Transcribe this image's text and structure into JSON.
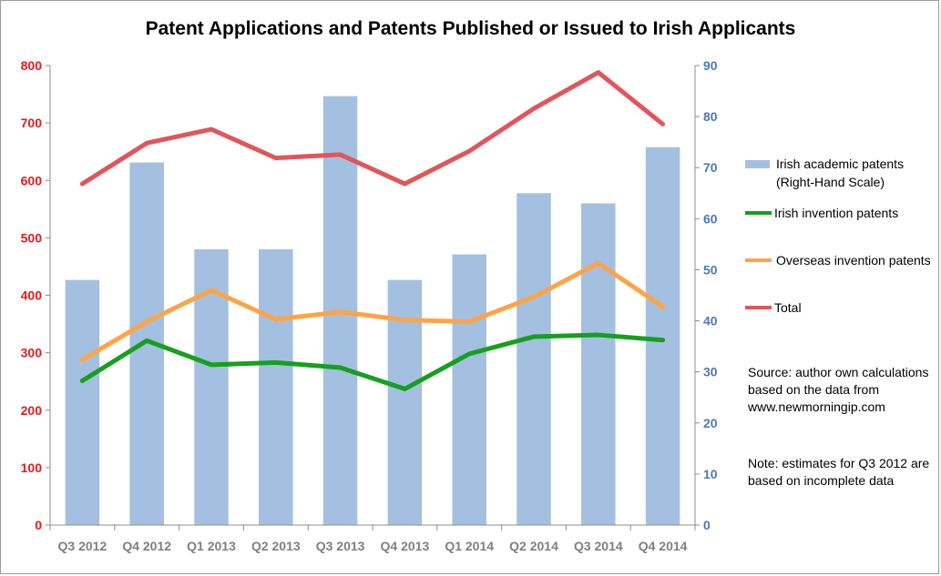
{
  "chart_data": {
    "type": "bar+line",
    "title": "Patent Applications and Patents Published or Issued to Irish Applicants",
    "categories": [
      "Q3 2012",
      "Q4 2012",
      "Q1 2013",
      "Q2 2013",
      "Q3 2013",
      "Q4 2013",
      "Q1 2014",
      "Q2 2014",
      "Q3 2014",
      "Q4 2014"
    ],
    "left_axis": {
      "min": 0,
      "max": 800,
      "step": 100,
      "color": "#e8191b"
    },
    "right_axis": {
      "min": 0,
      "max": 90,
      "step": 10,
      "color": "#4a7ab5"
    },
    "series": [
      {
        "name": "Irish academic patents (Right-Hand Scale)",
        "kind": "bar",
        "axis": "right",
        "color": "#a3c0e0",
        "values": [
          48,
          71,
          54,
          54,
          84,
          48,
          53,
          65,
          63,
          74
        ]
      },
      {
        "name": "Irish invention patents",
        "kind": "line",
        "axis": "left",
        "color": "#15a01e",
        "values": [
          251,
          321,
          279,
          283,
          274,
          237,
          298,
          328,
          331,
          322
        ]
      },
      {
        "name": "Overseas invention patents",
        "kind": "line",
        "axis": "left",
        "color": "#ffa347",
        "values": [
          288,
          354,
          409,
          358,
          371,
          357,
          354,
          397,
          456,
          380
        ]
      },
      {
        "name": "Total",
        "kind": "line",
        "axis": "left",
        "color": "#e0565a",
        "values": [
          594,
          665,
          689,
          639,
          645,
          594,
          651,
          725,
          788,
          698
        ]
      }
    ],
    "legend": [
      {
        "label": "Irish academic patents (Right-Hand Scale)",
        "color": "#a3c0e0",
        "kind": "bar"
      },
      {
        "label": "Irish invention patents",
        "color": "#15a01e",
        "kind": "line"
      },
      {
        "label": "Overseas invention patents",
        "color": "#ffa347",
        "kind": "line"
      },
      {
        "label": "Total",
        "color": "#e0565a",
        "kind": "line"
      }
    ],
    "notes": {
      "source": "Source: author own calculations based on the data from www.newmorningip.com",
      "note": "Note: estimates for Q3 2012 are based on incomplete data"
    }
  }
}
